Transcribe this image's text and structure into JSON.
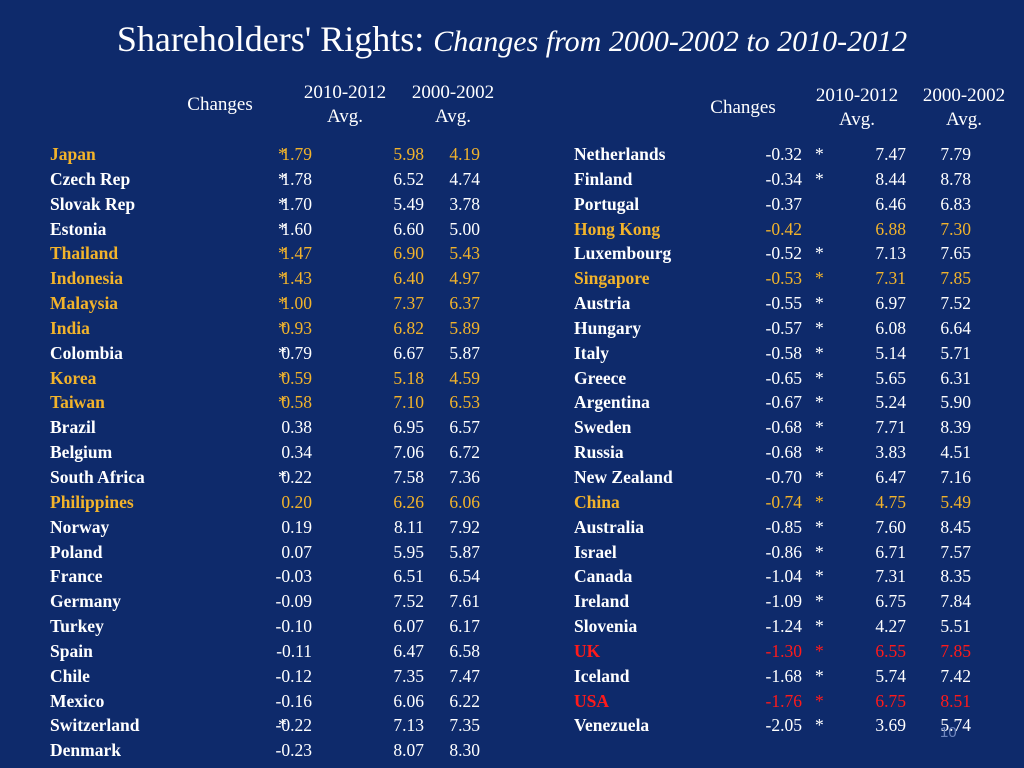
{
  "title": {
    "main": "Shareholders' Rights: ",
    "sub": "Changes from 2000-2002 to 2010-2012"
  },
  "headers": {
    "changes": "Changes",
    "col_2010_line1": "2010-2012",
    "col_2010_line2": "Avg.",
    "col_2000_line1": "2000-2002",
    "col_2000_line2": "Avg."
  },
  "colors": {
    "background": "#0e2a6b",
    "highlight_gold": "#f2b32b",
    "highlight_red": "#ff1a1a",
    "text": "#ffffff"
  },
  "left_rows": [
    {
      "country": "Japan",
      "change": "1.79",
      "sig": "*",
      "avg2010": "5.98",
      "avg2000": "4.19",
      "highlight": "gold"
    },
    {
      "country": "Czech Rep",
      "change": "1.78",
      "sig": "*",
      "avg2010": "6.52",
      "avg2000": "4.74",
      "highlight": ""
    },
    {
      "country": "Slovak Rep",
      "change": "1.70",
      "sig": "*",
      "avg2010": "5.49",
      "avg2000": "3.78",
      "highlight": ""
    },
    {
      "country": "Estonia",
      "change": "1.60",
      "sig": "*",
      "avg2010": "6.60",
      "avg2000": "5.00",
      "highlight": ""
    },
    {
      "country": "Thailand",
      "change": "1.47",
      "sig": "*",
      "avg2010": "6.90",
      "avg2000": "5.43",
      "highlight": "gold"
    },
    {
      "country": "Indonesia",
      "change": "1.43",
      "sig": "*",
      "avg2010": "6.40",
      "avg2000": "4.97",
      "highlight": "gold"
    },
    {
      "country": "Malaysia",
      "change": "1.00",
      "sig": "*",
      "avg2010": "7.37",
      "avg2000": "6.37",
      "highlight": "gold"
    },
    {
      "country": "India",
      "change": "0.93",
      "sig": "*",
      "avg2010": "6.82",
      "avg2000": "5.89",
      "highlight": "gold"
    },
    {
      "country": "Colombia",
      "change": "0.79",
      "sig": "*",
      "avg2010": "6.67",
      "avg2000": "5.87",
      "highlight": ""
    },
    {
      "country": "Korea",
      "change": "0.59",
      "sig": "*",
      "avg2010": "5.18",
      "avg2000": "4.59",
      "highlight": "gold"
    },
    {
      "country": "Taiwan",
      "change": "0.58",
      "sig": "*",
      "avg2010": "7.10",
      "avg2000": "6.53",
      "highlight": "gold"
    },
    {
      "country": "Brazil",
      "change": "0.38",
      "sig": "",
      "avg2010": "6.95",
      "avg2000": "6.57",
      "highlight": ""
    },
    {
      "country": "Belgium",
      "change": "0.34",
      "sig": "",
      "avg2010": "7.06",
      "avg2000": "6.72",
      "highlight": ""
    },
    {
      "country": "South Africa",
      "change": "0.22",
      "sig": "*",
      "avg2010": "7.58",
      "avg2000": "7.36",
      "highlight": ""
    },
    {
      "country": "Philippines",
      "change": "0.20",
      "sig": "",
      "avg2010": "6.26",
      "avg2000": "6.06",
      "highlight": "gold"
    },
    {
      "country": "Norway",
      "change": "0.19",
      "sig": "",
      "avg2010": "8.11",
      "avg2000": "7.92",
      "highlight": ""
    },
    {
      "country": "Poland",
      "change": "0.07",
      "sig": "",
      "avg2010": "5.95",
      "avg2000": "5.87",
      "highlight": ""
    },
    {
      "country": "France",
      "change": "-0.03",
      "sig": "",
      "avg2010": "6.51",
      "avg2000": "6.54",
      "highlight": ""
    },
    {
      "country": "Germany",
      "change": "-0.09",
      "sig": "",
      "avg2010": "7.52",
      "avg2000": "7.61",
      "highlight": ""
    },
    {
      "country": "Turkey",
      "change": "-0.10",
      "sig": "",
      "avg2010": "6.07",
      "avg2000": "6.17",
      "highlight": ""
    },
    {
      "country": "Spain",
      "change": "-0.11",
      "sig": "",
      "avg2010": "6.47",
      "avg2000": "6.58",
      "highlight": ""
    },
    {
      "country": "Chile",
      "change": "-0.12",
      "sig": "",
      "avg2010": "7.35",
      "avg2000": "7.47",
      "highlight": ""
    },
    {
      "country": "Mexico",
      "change": "-0.16",
      "sig": "",
      "avg2010": "6.06",
      "avg2000": "6.22",
      "highlight": ""
    },
    {
      "country": "Switzerland",
      "change": "-0.22",
      "sig": "*",
      "avg2010": "7.13",
      "avg2000": "7.35",
      "highlight": ""
    },
    {
      "country": "Denmark",
      "change": "-0.23",
      "sig": "",
      "avg2010": "8.07",
      "avg2000": "8.30",
      "highlight": ""
    }
  ],
  "right_rows": [
    {
      "country": "Netherlands",
      "change": "-0.32",
      "sig": "*",
      "avg2010": "7.47",
      "avg2000": "7.79",
      "highlight": ""
    },
    {
      "country": "Finland",
      "change": "-0.34",
      "sig": "*",
      "avg2010": "8.44",
      "avg2000": "8.78",
      "highlight": ""
    },
    {
      "country": "Portugal",
      "change": "-0.37",
      "sig": "",
      "avg2010": "6.46",
      "avg2000": "6.83",
      "highlight": ""
    },
    {
      "country": "Hong Kong",
      "change": "-0.42",
      "sig": "",
      "avg2010": "6.88",
      "avg2000": "7.30",
      "highlight": "gold"
    },
    {
      "country": "Luxembourg",
      "change": "-0.52",
      "sig": "*",
      "avg2010": "7.13",
      "avg2000": "7.65",
      "highlight": ""
    },
    {
      "country": "Singapore",
      "change": "-0.53",
      "sig": "*",
      "avg2010": "7.31",
      "avg2000": "7.85",
      "highlight": "gold"
    },
    {
      "country": "Austria",
      "change": "-0.55",
      "sig": "*",
      "avg2010": "6.97",
      "avg2000": "7.52",
      "highlight": ""
    },
    {
      "country": "Hungary",
      "change": "-0.57",
      "sig": "*",
      "avg2010": "6.08",
      "avg2000": "6.64",
      "highlight": ""
    },
    {
      "country": "Italy",
      "change": "-0.58",
      "sig": "*",
      "avg2010": "5.14",
      "avg2000": "5.71",
      "highlight": ""
    },
    {
      "country": "Greece",
      "change": "-0.65",
      "sig": "*",
      "avg2010": "5.65",
      "avg2000": "6.31",
      "highlight": ""
    },
    {
      "country": "Argentina",
      "change": "-0.67",
      "sig": "*",
      "avg2010": "5.24",
      "avg2000": "5.90",
      "highlight": ""
    },
    {
      "country": "Sweden",
      "change": "-0.68",
      "sig": "*",
      "avg2010": "7.71",
      "avg2000": "8.39",
      "highlight": ""
    },
    {
      "country": "Russia",
      "change": "-0.68",
      "sig": "*",
      "avg2010": "3.83",
      "avg2000": "4.51",
      "highlight": ""
    },
    {
      "country": "New Zealand",
      "change": "-0.70",
      "sig": "*",
      "avg2010": "6.47",
      "avg2000": "7.16",
      "highlight": ""
    },
    {
      "country": "China",
      "change": "-0.74",
      "sig": "*",
      "avg2010": "4.75",
      "avg2000": "5.49",
      "highlight": "gold"
    },
    {
      "country": "Australia",
      "change": "-0.85",
      "sig": "*",
      "avg2010": "7.60",
      "avg2000": "8.45",
      "highlight": ""
    },
    {
      "country": "Israel",
      "change": "-0.86",
      "sig": "*",
      "avg2010": "6.71",
      "avg2000": "7.57",
      "highlight": ""
    },
    {
      "country": "Canada",
      "change": "-1.04",
      "sig": "*",
      "avg2010": "7.31",
      "avg2000": "8.35",
      "highlight": ""
    },
    {
      "country": "Ireland",
      "change": "-1.09",
      "sig": "*",
      "avg2010": "6.75",
      "avg2000": "7.84",
      "highlight": ""
    },
    {
      "country": "Slovenia",
      "change": "-1.24",
      "sig": "*",
      "avg2010": "4.27",
      "avg2000": "5.51",
      "highlight": ""
    },
    {
      "country": "UK",
      "change": "-1.30",
      "sig": "*",
      "avg2010": "6.55",
      "avg2000": "7.85",
      "highlight": "red"
    },
    {
      "country": "Iceland",
      "change": "-1.68",
      "sig": "*",
      "avg2010": "5.74",
      "avg2000": "7.42",
      "highlight": ""
    },
    {
      "country": "USA",
      "change": "-1.76",
      "sig": "*",
      "avg2010": "6.75",
      "avg2000": "8.51",
      "highlight": "red"
    },
    {
      "country": "Venezuela",
      "change": "-2.05",
      "sig": "*",
      "avg2010": "3.69",
      "avg2000": "5.74",
      "highlight": ""
    }
  ],
  "page_number": "10"
}
